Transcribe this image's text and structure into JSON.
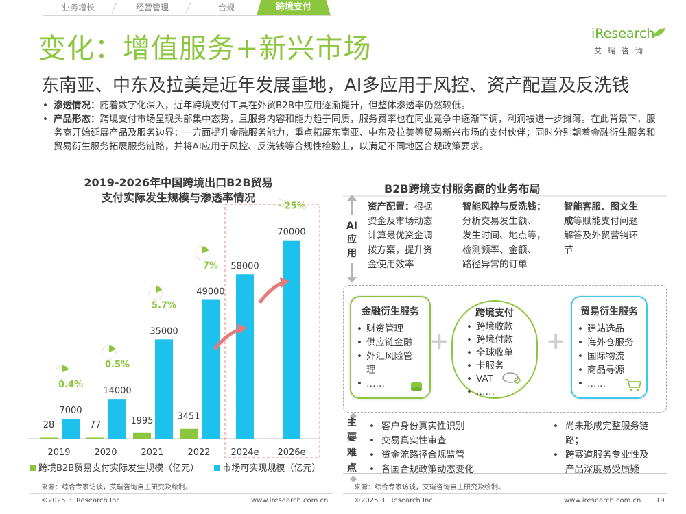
{
  "tabs": [
    {
      "label": "业务增长",
      "active": false
    },
    {
      "label": "经营管理",
      "active": false
    },
    {
      "label": "合规",
      "active": false
    },
    {
      "label": "跨境支付",
      "active": true
    }
  ],
  "title": "变化：增值服务+新兴市场",
  "logo": {
    "word": "iResearch",
    "sub": "艾瑞咨询"
  },
  "subtitle": "东南亚、中东及拉美是近年发展重地，AI多应用于风控、资产配置及反洗钱",
  "bullets": [
    {
      "term": "渗透情况：",
      "text": "随着数字化深入，近年跨境支付工具在外贸B2B中应用逐渐提升，但整体渗透率仍然较低。"
    },
    {
      "term": "产品形态：",
      "text": "跨境支付市场呈现头部集中态势，且服务内容和能力趋于同质，服务费率也在同业竞争中逐渐下调，利润被进一步摊薄。在此背景下，服务商开始延展产品及服务边界：一方面提升金融服务能力，重点拓展东南亚、中东及拉美等贸易新兴市场的支付伙伴；同时分别朝着金融衍生服务和贸易衍生服务拓展服务链路，并将AI应用于风控、反洗钱等合规性检验上，以满足不同地区合规政策要求。"
    }
  ],
  "chart": {
    "title_line1": "2019-2026年中国跨境出口B2B贸易",
    "title_line2": "支付实际发生规模与渗透率情况",
    "legend_actual": "跨境B2B贸易支付实际发生规模（亿元）",
    "legend_market": "市场可实现规模（亿元）",
    "source": "来源：综合专家访谈，艾瑞咨询自主研究及绘制。"
  },
  "chart_data": {
    "type": "bar",
    "categories": [
      "2019",
      "2020",
      "2021",
      "2022",
      "2024e",
      "2026e"
    ],
    "series": [
      {
        "name": "跨境B2B贸易支付实际发生规模（亿元）",
        "values": [
          28,
          77,
          1995,
          3451,
          null,
          null
        ],
        "color": "#8cc63f"
      },
      {
        "name": "市场可实现规模（亿元）",
        "values": [
          7000,
          14000,
          35000,
          49000,
          58000,
          70000
        ],
        "color": "#1ec0ec"
      }
    ],
    "penetration_labels": [
      "0.4%",
      "0.5%",
      "5.7%",
      "7%",
      null,
      "~25%"
    ],
    "value_labels_actual": [
      "28",
      "77",
      "1995",
      "3451",
      "",
      ""
    ],
    "value_labels_market": [
      "7000",
      "14000",
      "35000",
      "49000",
      "58000",
      "70000"
    ],
    "ylim": [
      0,
      75000
    ],
    "grid": false,
    "legend_position": "bottom"
  },
  "diagram": {
    "title": "B2B跨境支付服务商的业务布局",
    "ai_label": [
      "AI",
      "应",
      "用"
    ],
    "ai_cols": [
      {
        "term": "资产配置：",
        "lines": [
          "资产配置：根据",
          "资金及市场动态",
          "计算最优资金调",
          "拨方案，提升资",
          "金使用效率"
        ]
      },
      {
        "term": "智能风控与反洗钱：",
        "lines": [
          "智能风控与反洗钱：",
          "分析交易发生额、",
          "发生时间、地点等，",
          "检测频率、金额、",
          "路径异常的订单"
        ]
      },
      {
        "term": "智能客服、图文生成",
        "lines": [
          "智能客服、图文生",
          "成等赋能支付问题",
          "解答及外贸营销环",
          "节"
        ]
      }
    ],
    "cards": [
      {
        "title": "金融衍生服务",
        "items": [
          "财资管理",
          "供应链金融",
          "外汇风险管",
          "理",
          "……"
        ]
      },
      {
        "title": "跨境支付",
        "items": [
          "跨境收款",
          "跨境付款",
          "全球收单",
          "卡服务",
          "VAT",
          "……"
        ]
      },
      {
        "title": "贸易衍生服务",
        "items": [
          "建站选品",
          "海外仓服务",
          "国际物流",
          "商品寻源",
          "……"
        ]
      }
    ],
    "diff_label": [
      "主",
      "要",
      "难",
      "点"
    ],
    "diff_left": [
      "客户身份真实性识别",
      "交易真实性审查",
      "资金流路径合规监管",
      "各国合规政策动态变化"
    ],
    "diff_right": [
      "尚未形成完整服务链",
      "路；",
      "跨赛道服务专业性及",
      "产品深度易受质疑"
    ],
    "source": "来源：综合专家访谈，艾瑞咨询自主研究及绘制。"
  },
  "footer": {
    "copyright": "©2025.3 iResearch Inc.",
    "site": "www.iresearch.com.cn",
    "page": "19"
  }
}
